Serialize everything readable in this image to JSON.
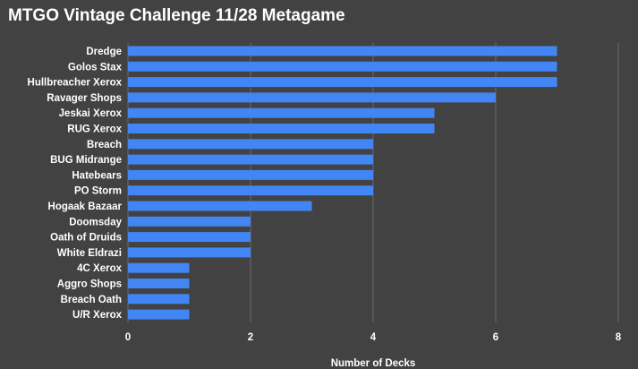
{
  "chart_data": {
    "type": "bar",
    "orientation": "horizontal",
    "title": "MTGO Vintage Challenge 11/28 Metagame",
    "xlabel": "Number of Decks",
    "ylabel": "",
    "xlim": [
      0,
      8
    ],
    "xticks": [
      0,
      2,
      4,
      6,
      8
    ],
    "grid": true,
    "categories": [
      "Dredge",
      "Golos Stax",
      "Hullbreacher Xerox",
      "Ravager Shops",
      "Jeskai Xerox",
      "RUG Xerox",
      "Breach",
      "BUG Midrange",
      "Hatebears",
      "PO Storm",
      "Hogaak Bazaar",
      "Doomsday",
      "Oath of Druids",
      "White Eldrazi",
      "4C Xerox",
      "Aggro Shops",
      "Breach Oath",
      "U/R Xerox"
    ],
    "values": [
      7,
      7,
      7,
      6,
      5,
      5,
      4,
      4,
      4,
      4,
      3,
      2,
      2,
      2,
      1,
      1,
      1,
      1
    ],
    "colors": {
      "bar": "#4285f4",
      "background": "#424242",
      "grid": "#6b6b6b",
      "text": "#ffffff"
    }
  }
}
